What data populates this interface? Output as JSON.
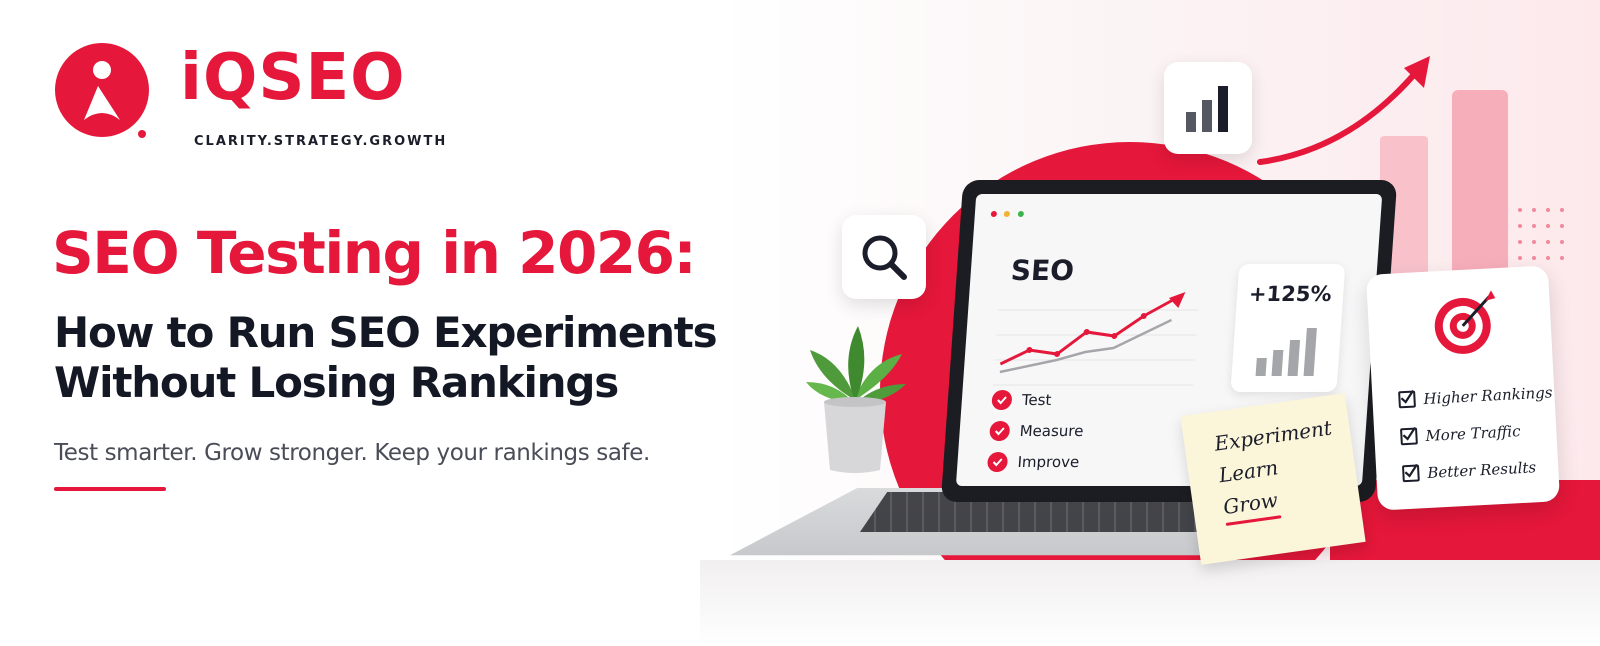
{
  "brand": {
    "name": "iQSEO",
    "tagline": "CLARITY.STRATEGY.GROWTH",
    "accent_color": "#e5173a",
    "logo_icon": "person-circle-logo-icon"
  },
  "headline": {
    "title": "SEO Testing in 2026:",
    "subtitle_line1": "How to Run SEO Experiments",
    "subtitle_line2": "Without Losing Rankings",
    "tagline": "Test smarter. Grow stronger. Keep your rankings safe."
  },
  "laptop": {
    "screen_title": "SEO",
    "stat": "+125%",
    "checklist": [
      "Test",
      "Measure",
      "Improve"
    ]
  },
  "sticky_note": {
    "lines": [
      "Experiment",
      "Learn",
      "Grow"
    ]
  },
  "goals_card": {
    "items": [
      "Higher Rankings",
      "More Traffic",
      "Better Results"
    ],
    "icon": "target-icon"
  },
  "floating_icons": [
    "search-icon",
    "bar-chart-icon",
    "growth-arrow-icon"
  ]
}
